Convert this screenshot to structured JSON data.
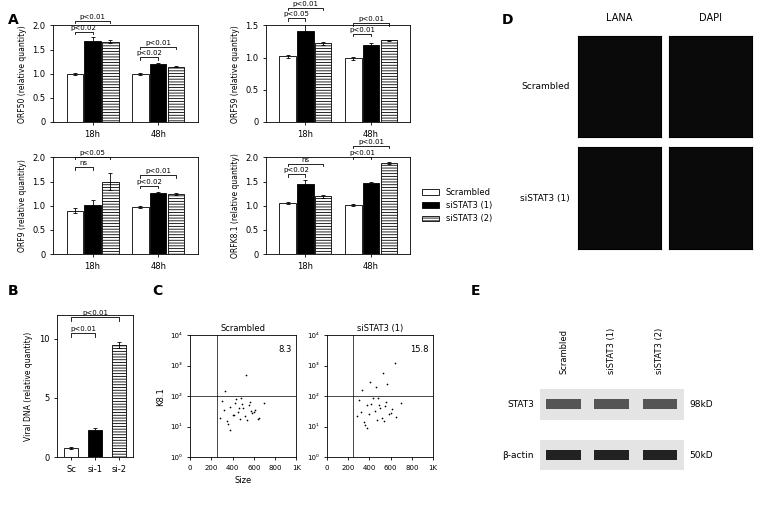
{
  "panel_labels": [
    "A",
    "B",
    "C",
    "D",
    "E"
  ],
  "chart_data": [
    {
      "type": "bar",
      "y_label": "ORF50 (relative quantity)",
      "categories": [
        "18h",
        "48h"
      ],
      "ylim": [
        0,
        2.0
      ],
      "yticks": [
        0,
        0.5,
        {
          "value": 1,
          "label": "1.0"
        },
        1.5,
        {
          "value": 2,
          "label": "2.0"
        }
      ],
      "series": [
        {
          "color": "#ffffff",
          "values": [
            1.0,
            0.99
          ],
          "errors": [
            0.02,
            0.02
          ]
        },
        {
          "color": "#000000",
          "values": [
            1.68,
            1.2
          ],
          "errors": [
            0.07,
            0.02
          ],
          "significance": [
            "p<0.02",
            "p<0.02"
          ]
        },
        {
          "color": "#ffffff",
          "values": [
            1.66,
            1.14
          ],
          "errors": [
            0.03,
            0.01
          ],
          "significance": [
            "p<0.01",
            "p<0.01"
          ]
        }
      ]
    },
    {
      "type": "bar",
      "y_label": "ORF59 (relative quantity)",
      "categories": [
        "18h",
        "48h"
      ],
      "ylim": [
        0,
        1.5
      ],
      "yticks": [
        0,
        0.5,
        {
          "value": 1,
          "label": "1.0"
        },
        1.5
      ],
      "series": [
        {
          "color": "#ffffff",
          "values": [
            1.02,
            0.99
          ],
          "errors": [
            0.02,
            0.02
          ]
        },
        {
          "color": "#000000",
          "values": [
            1.42,
            1.2
          ],
          "errors": [
            0.1,
            0.02
          ],
          "significance": [
            "p<0.05",
            "p<0.01"
          ]
        },
        {
          "color": "#ffffff",
          "values": [
            1.22,
            1.27
          ],
          "errors": [
            0.02,
            0.01
          ],
          "significance": [
            "p<0.01",
            "p<0.01"
          ]
        }
      ]
    },
    {
      "type": "bar",
      "y_label": "ORF9 (relative quantity)",
      "categories": [
        "18h",
        "48h"
      ],
      "ylim": [
        0,
        2.0
      ],
      "yticks": [
        0,
        0.5,
        {
          "value": 1,
          "label": "1.0"
        },
        1.5,
        {
          "value": 2,
          "label": "2.0"
        }
      ],
      "series": [
        {
          "color": "#ffffff",
          "values": [
            0.9,
            0.98
          ],
          "errors": [
            0.05,
            0.02
          ]
        },
        {
          "color": "#000000",
          "values": [
            1.02,
            1.27
          ],
          "errors": [
            0.1,
            0.02
          ],
          "significance": [
            "ns",
            "p<0.02"
          ]
        },
        {
          "color": "#ffffff",
          "values": [
            1.5,
            1.25
          ],
          "errors": [
            0.18,
            0.02
          ],
          "significance": [
            "p<0.05",
            "p<0.01"
          ]
        }
      ]
    },
    {
      "type": "bar",
      "y_label": "ORFK8.1 (relative quantity)",
      "categories": [
        "18h",
        "48h"
      ],
      "legend": "right",
      "ylim": [
        0,
        2.0
      ],
      "yticks": [
        0,
        0.5,
        {
          "value": 1,
          "label": "1.0"
        },
        1.5,
        {
          "value": 2,
          "label": "2.0"
        }
      ],
      "series": [
        {
          "name": "Scrambled",
          "color": "#ffffff",
          "values": [
            1.05,
            1.02
          ],
          "errors": [
            0.02,
            0.02
          ]
        },
        {
          "name": "siSTAT3 (1)",
          "color": "#000000",
          "values": [
            1.45,
            1.47
          ],
          "errors": [
            0.08,
            0.03
          ],
          "significance": [
            "p<0.02",
            "p<0.01"
          ]
        },
        {
          "name": "siSTAT3 (2)",
          "color": "#ffffff",
          "values": [
            1.2,
            1.88
          ],
          "errors": [
            0.03,
            0.02
          ],
          "significance": [
            "ns",
            "p<0.01"
          ]
        }
      ]
    },
    {
      "type": "bar",
      "y_label": "Viral DNA (relative quantity)",
      "categories": [
        "Sc",
        "si-1",
        "si-2"
      ],
      "values": [
        0.8,
        2.3,
        9.5
      ],
      "errors": [
        0.1,
        0.2,
        0.25
      ],
      "colors": [
        "#ffffff",
        "#000000",
        "#ffffff"
      ],
      "significance": [
        null,
        "p<0.01",
        "p<0.01"
      ],
      "ylim": [
        0,
        12
      ],
      "yticks": [
        0,
        5,
        10
      ]
    },
    {
      "type": "scatter",
      "title": "Scrambled",
      "x_label": "Size",
      "y_label": "K8.1",
      "log": "y",
      "color": "#000000",
      "xlim": [
        0,
        1000
      ],
      "xticks": [
        0,
        200,
        400,
        600,
        800,
        {
          "value": 1000,
          "label": "1K"
        }
      ],
      "ylim": [
        1,
        10000
      ],
      "yticks": [
        {
          "value": 1,
          "label": "10⁰"
        },
        {
          "value": 10,
          "label": "10¹"
        },
        {
          "value": 100,
          "label": "10²"
        },
        {
          "value": 1000,
          "label": "10³"
        },
        {
          "value": 10000,
          "label": "10⁴"
        }
      ],
      "gates": {
        "x": 250,
        "y": 100
      },
      "annotation": "8.3",
      "x": [
        280,
        320,
        350,
        380,
        400,
        420,
        450,
        470,
        500,
        520,
        550,
        580,
        610,
        650,
        300,
        360,
        430,
        490,
        540,
        600,
        330,
        410,
        460,
        530,
        570,
        640,
        700,
        380,
        480,
        560
      ],
      "y": [
        20,
        35,
        15,
        45,
        25,
        60,
        30,
        18,
        40,
        22,
        50,
        28,
        35,
        20,
        70,
        12,
        80,
        55,
        16,
        30,
        150,
        25,
        40,
        500,
        33,
        18,
        60,
        8,
        90,
        65
      ]
    },
    {
      "type": "scatter",
      "title": "siSTAT3 (1)",
      "log": "y",
      "color": "#000000",
      "xlim": [
        0,
        1000
      ],
      "xticks": [
        0,
        200,
        400,
        600,
        800,
        {
          "value": 1000,
          "label": "1K"
        }
      ],
      "ylim": [
        1,
        10000
      ],
      "yticks": [
        {
          "value": 1,
          "label": "10⁰"
        },
        {
          "value": 10,
          "label": "10¹"
        },
        {
          "value": 100,
          "label": "10²"
        },
        {
          "value": 1000,
          "label": "10³"
        },
        {
          "value": 10000,
          "label": "10⁴"
        }
      ],
      "gates": {
        "x": 250,
        "y": 100
      },
      "annotation": "15.8",
      "x": [
        280,
        320,
        350,
        380,
        400,
        420,
        450,
        470,
        500,
        520,
        550,
        580,
        610,
        650,
        300,
        360,
        430,
        490,
        540,
        600,
        330,
        410,
        460,
        530,
        570,
        640,
        700,
        380,
        480,
        560
      ],
      "y": [
        22,
        30,
        14,
        50,
        26,
        55,
        32,
        17,
        42,
        20,
        48,
        27,
        38,
        21,
        75,
        11,
        85,
        52,
        15,
        28,
        160,
        300,
        200,
        600,
        250,
        1200,
        60,
        9,
        90,
        65
      ]
    }
  ],
  "images": {
    "columns": [
      "LANA",
      "DAPI"
    ],
    "rows": [
      "Scrambled",
      "siSTAT3 (1)"
    ]
  },
  "blot": {
    "lanes": [
      "Scrambled",
      "siSTAT3 (1)",
      "siSTAT3 (2)"
    ],
    "bands": [
      {
        "name": "STAT3",
        "size": "98kD"
      },
      {
        "name": "β-actin",
        "size": "50kD"
      }
    ]
  }
}
